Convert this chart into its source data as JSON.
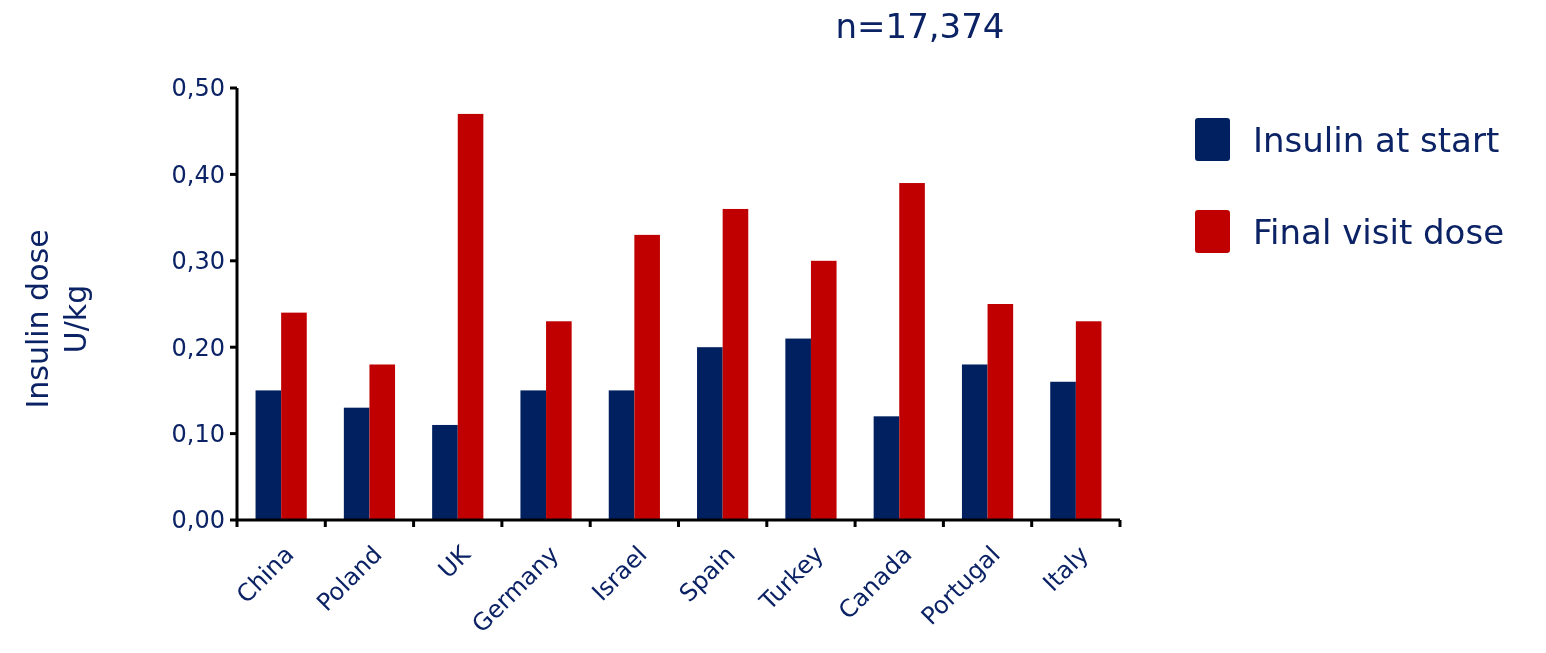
{
  "chart_data": {
    "type": "bar",
    "title": "n=17,374",
    "ylabel": "Insulin dose\nU/kg",
    "categories": [
      "China",
      "Poland",
      "UK",
      "Germany",
      "Israel",
      "Spain",
      "Turkey",
      "Canada",
      "Portugal",
      "Italy"
    ],
    "series": [
      {
        "name": "Insulin at start",
        "color": "#002060",
        "values": [
          0.15,
          0.13,
          0.11,
          0.15,
          0.15,
          0.2,
          0.21,
          0.12,
          0.18,
          0.16
        ]
      },
      {
        "name": "Final visit dose",
        "color": "#c00000",
        "values": [
          0.24,
          0.18,
          0.47,
          0.23,
          0.33,
          0.36,
          0.3,
          0.39,
          0.25,
          0.23
        ]
      }
    ],
    "ylim": [
      0,
      0.5
    ],
    "yticks": [
      {
        "value": 0,
        "label": "0,00"
      },
      {
        "value": 0.1,
        "label": "0,10"
      },
      {
        "value": 0.2,
        "label": "0,20"
      },
      {
        "value": 0.3,
        "label": "0,30"
      },
      {
        "value": 0.4,
        "label": "0,40"
      },
      {
        "value": 0.5,
        "label": "0,50"
      }
    ],
    "grid": false,
    "legend": "top right"
  }
}
